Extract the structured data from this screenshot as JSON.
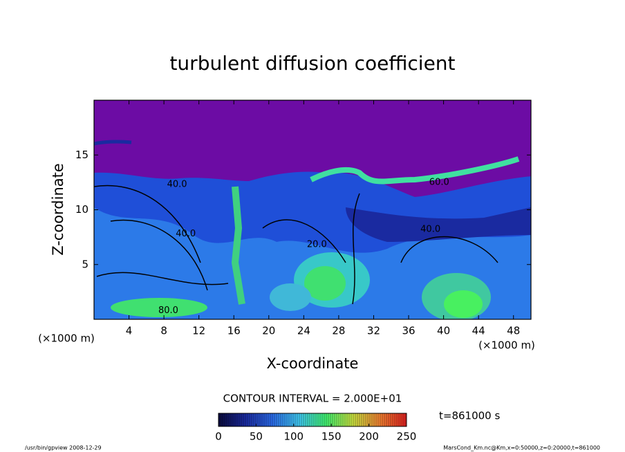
{
  "chart_data": {
    "type": "contour",
    "title": "turbulent diffusion coefficient",
    "x_label": "X-coordinate",
    "y_label": "Z-coordinate",
    "x_unit": "(×1000 m)",
    "xlim": [
      0,
      50
    ],
    "xticks": [
      4,
      8,
      12,
      16,
      20,
      24,
      28,
      32,
      36,
      40,
      44,
      48
    ],
    "ylim": [
      0,
      20
    ],
    "yticks": [
      5,
      10,
      15
    ],
    "contour_interval": "CONTOUR INTERVAL = 2.000E+01",
    "time": "t=861000 s",
    "colorbar": {
      "lim": [
        0,
        250
      ],
      "ticks": [
        0,
        50,
        100,
        150,
        200,
        250
      ],
      "colormap": [
        "#0a0a3c",
        "#1a2aa0",
        "#2a6ae8",
        "#40c8f0",
        "#40f070",
        "#c8e040",
        "#f08030",
        "#e02020"
      ]
    },
    "contour_labels": [
      {
        "text": "40.0",
        "x": 9.5,
        "y": 12.3
      },
      {
        "text": "40.0",
        "x": 10.5,
        "y": 7.8
      },
      {
        "text": "80.0",
        "x": 8.5,
        "y": 0.8
      },
      {
        "text": "60.0",
        "x": 39.5,
        "y": 12.5
      },
      {
        "text": "40.0",
        "x": 38.5,
        "y": 8.2
      },
      {
        "text": "20.0",
        "x": 25.5,
        "y": 6.8
      }
    ],
    "footer_left": "/usr/bin/gpview  2008-12-29",
    "footer_right": "MarsCond_Km.nc@Km,x=0:50000,z=0:20000,t=861000"
  }
}
